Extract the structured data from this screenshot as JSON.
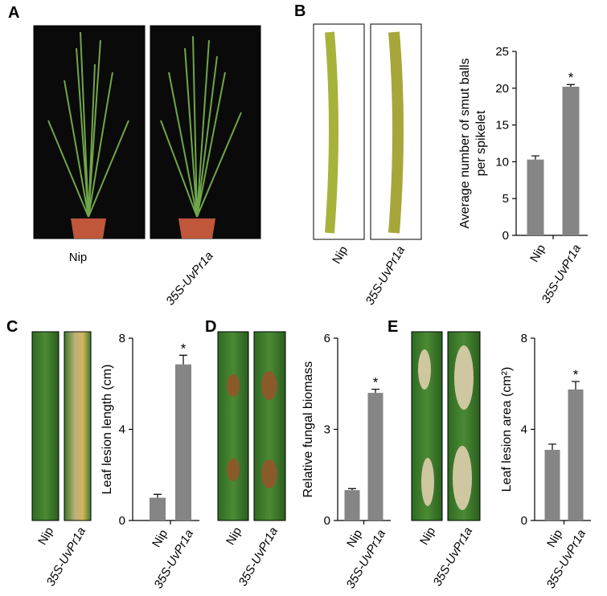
{
  "panels": [
    {
      "label": "A",
      "photo_labels": [
        "Nip",
        "35S-UvPr1a"
      ]
    },
    {
      "label": "B",
      "photo_labels": [
        "Nip",
        "35S-UvPr1a"
      ]
    },
    {
      "label": "C",
      "photo_labels": [
        "Nip",
        "35S-UvPr1a"
      ]
    },
    {
      "label": "D",
      "photo_labels": [
        "Nip",
        "35S-UvPr1a"
      ]
    },
    {
      "label": "E",
      "photo_labels": [
        "Nip",
        "35S-UvPr1a"
      ]
    }
  ],
  "chart_data": [
    {
      "type": "bar",
      "ylabel": [
        "Average number of smut balls",
        "per spikelet"
      ],
      "categories": [
        "Nip",
        "35S-UvPr1a"
      ],
      "series": [
        {
          "color": "#858585",
          "values": [
            10.3,
            20.2
          ],
          "errors": [
            0.5,
            0.3
          ]
        }
      ],
      "annotation": "*",
      "ylim": [
        0,
        25
      ],
      "yticks": [
        0,
        5,
        10,
        15,
        20,
        25
      ]
    },
    {
      "type": "bar",
      "ylabel": [
        "Leaf lesion length (cm)"
      ],
      "categories": [
        "Nip",
        "35S-UvPr1a"
      ],
      "series": [
        {
          "color": "#858585",
          "values": [
            1.0,
            6.85
          ],
          "errors": [
            0.15,
            0.4
          ]
        }
      ],
      "annotation": "*",
      "ylim": [
        0,
        8
      ],
      "yticks": [
        0,
        4,
        8
      ]
    },
    {
      "type": "bar",
      "ylabel": [
        "Relative fungal biomass"
      ],
      "categories": [
        "Nip",
        "35S-UvPr1a"
      ],
      "series": [
        {
          "color": "#858585",
          "values": [
            1.0,
            4.2
          ],
          "errors": [
            0.05,
            0.12
          ]
        }
      ],
      "annotation": "*",
      "ylim": [
        0,
        6
      ],
      "yticks": [
        0,
        3,
        6
      ]
    },
    {
      "type": "bar",
      "ylabel": [
        "Leaf lesion area (cm²)"
      ],
      "categories": [
        "Nip",
        "35S-UvPr1a"
      ],
      "series": [
        {
          "color": "#858585",
          "values": [
            3.1,
            5.75
          ],
          "errors": [
            0.25,
            0.35
          ]
        }
      ],
      "annotation": "*",
      "ylim": [
        0,
        8
      ],
      "yticks": [
        0,
        4,
        8
      ]
    }
  ]
}
